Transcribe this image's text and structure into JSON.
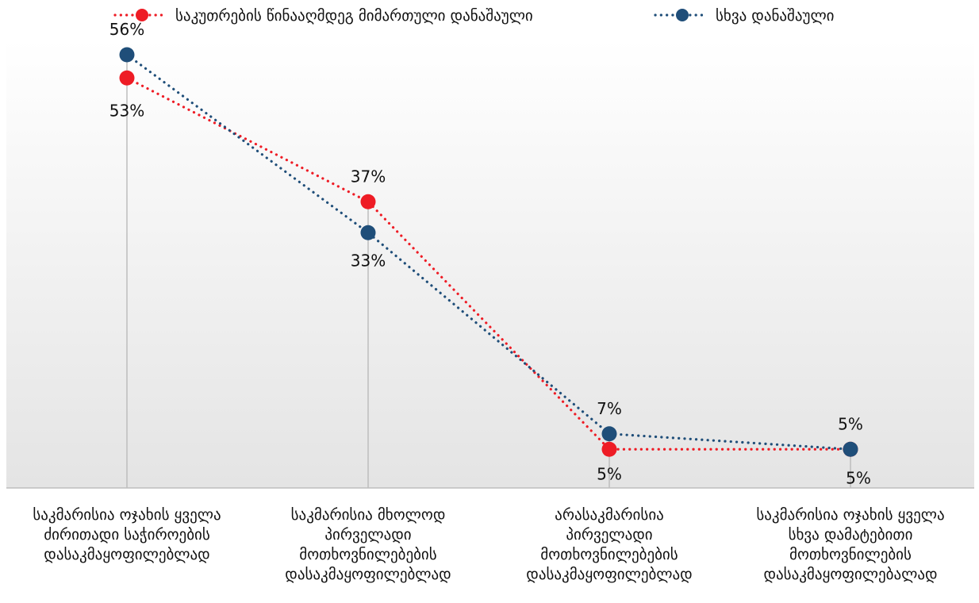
{
  "chart_data": {
    "type": "line",
    "categories": [
      "საკმარისია ოჯახის ყველა\nძირითადი საჭიროების\nდასაკმაყოფილებლად",
      "საკმარისია მხოლოდ\nპირველადი\nმოთხოვნილებების\nდასაკმაყოფილებლად",
      "არასაკმარისია\nპირველადი\nმოთხოვნილებების\nდასაკმაყოფილებლად",
      "საკმარისია ოჯახის ყველა\nსხვა დამატებითი\nმოთხოვნილების\nდასაკმაყოფილებალად"
    ],
    "series": [
      {
        "name": "საკუთრების წინააღმდეგ მიმართული დანაშაული",
        "values": [
          53,
          37,
          5,
          5
        ],
        "labels": [
          "53%",
          "37%",
          "5%",
          ""
        ],
        "color": "#ee1c25"
      },
      {
        "name": "სხვა დანაშაული",
        "values": [
          56,
          33,
          7,
          5
        ],
        "labels": [
          "56%",
          "33%",
          "7%",
          "5%"
        ],
        "color": "#1f4e79"
      }
    ],
    "extra_labels": [
      "5%"
    ],
    "ylim": [
      0,
      60
    ],
    "legend_position": "top",
    "grid": false
  }
}
